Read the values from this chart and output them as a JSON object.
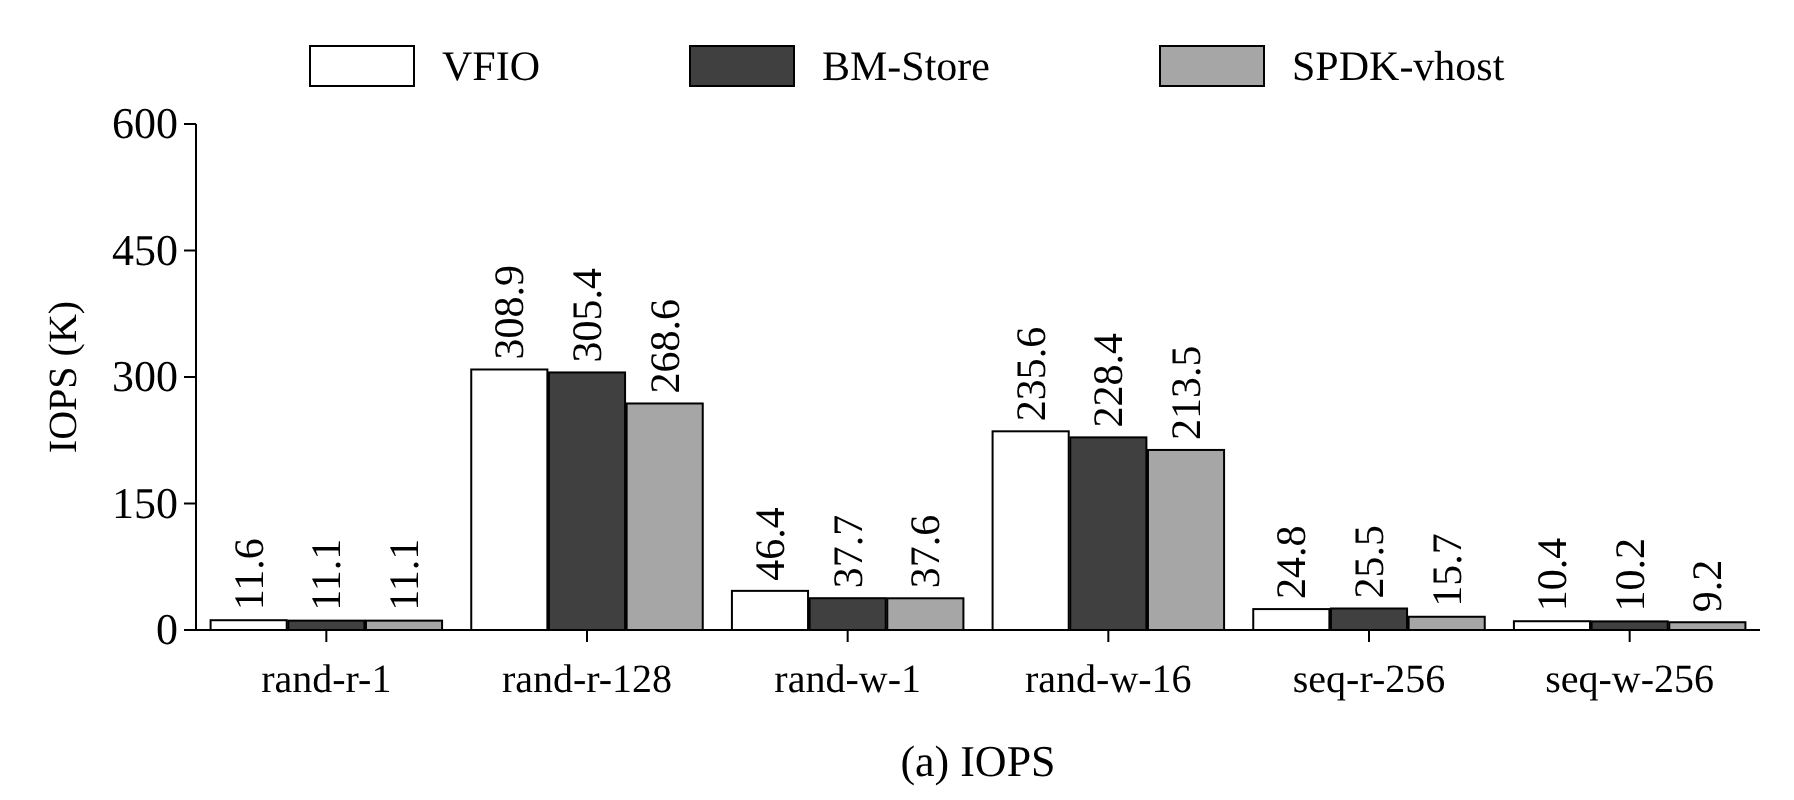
{
  "chart_data": {
    "type": "bar",
    "title": "(a) IOPS",
    "ylabel": "IOPS (K)",
    "categories": [
      "rand-r-1",
      "rand-r-128",
      "rand-w-1",
      "rand-w-16",
      "seq-r-256",
      "seq-w-256"
    ],
    "series": [
      {
        "name": "VFIO",
        "color": "#ffffff",
        "values": [
          11.6,
          308.9,
          46.4,
          235.6,
          24.8,
          10.4
        ]
      },
      {
        "name": "BM-Store",
        "color": "#404040",
        "values": [
          11.1,
          305.4,
          37.7,
          228.4,
          25.5,
          10.2
        ]
      },
      {
        "name": "SPDK-vhost",
        "color": "#a6a6a6",
        "values": [
          11.1,
          268.6,
          37.6,
          213.5,
          15.7,
          9.2
        ]
      }
    ],
    "ylim": [
      0,
      600
    ],
    "yticks": [
      0,
      150,
      300,
      450,
      600
    ],
    "data_labels": true,
    "legend": "top",
    "grid": false
  }
}
